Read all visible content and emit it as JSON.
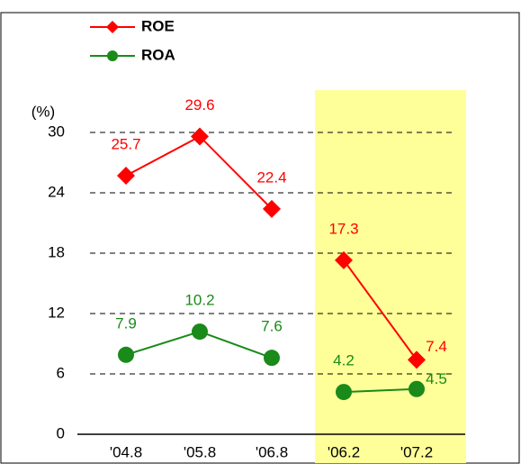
{
  "chart_data": {
    "type": "line",
    "y_label": "(%)",
    "categories": [
      "'04.8",
      "'05.8",
      "'06.8",
      "'06.2",
      "'07.2"
    ],
    "series": [
      {
        "name": "ROE",
        "color": "#ff0000",
        "marker": "diamond",
        "values": [
          25.7,
          29.6,
          22.4,
          17.3,
          7.4
        ]
      },
      {
        "name": "ROA",
        "color": "#1a8a1a",
        "marker": "circle",
        "values": [
          7.9,
          10.2,
          7.6,
          4.2,
          4.5
        ]
      }
    ],
    "ylim": [
      0,
      30
    ],
    "yticks": [
      0,
      6,
      12,
      18,
      24,
      30
    ],
    "grid": true
  }
}
